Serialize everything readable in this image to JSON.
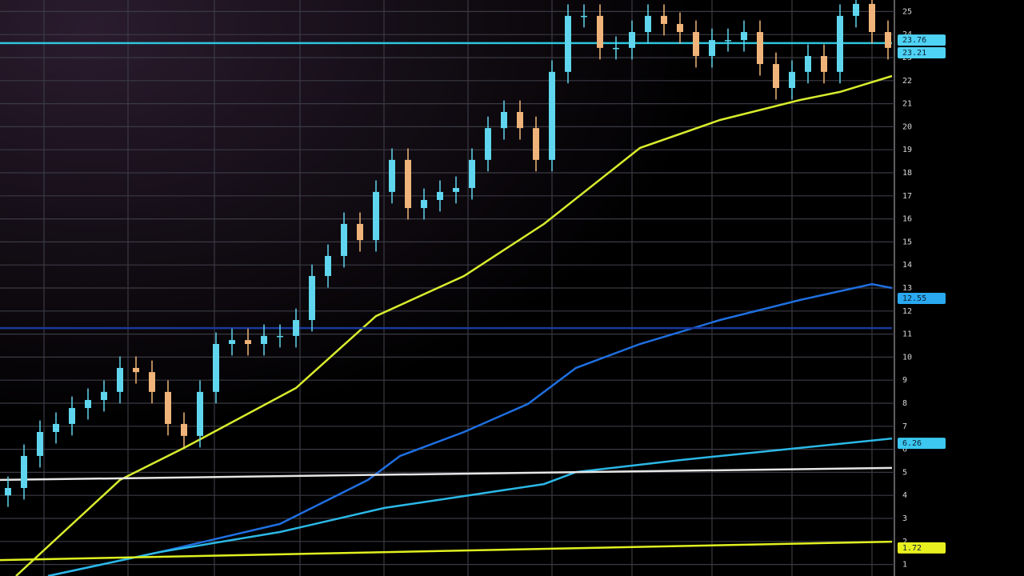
{
  "chart_data": {
    "type": "candlestick",
    "xlim": [
      -0.5,
      55.25
    ],
    "ylim": [
      0.5,
      25.5
    ],
    "xticks": [
      2.25,
      7.5,
      12.9,
      18.25,
      23.5,
      28.75,
      34,
      39,
      44,
      49,
      54
    ],
    "yticks": [
      1,
      2,
      3,
      4,
      5,
      6,
      7,
      8,
      9,
      10,
      11,
      12,
      13,
      14,
      15,
      16,
      17,
      18,
      19,
      20,
      21,
      22,
      23,
      24,
      25
    ],
    "grid": true,
    "up_color": "#5fd6ee",
    "down_color": "#f0b47a",
    "open": [
      4.0,
      4.32,
      5.71,
      6.75,
      7.1,
      7.79,
      8.14,
      8.49,
      9.53,
      9.35,
      8.49,
      7.1,
      6.58,
      8.49,
      10.57,
      10.74,
      10.57,
      10.92,
      10.92,
      11.61,
      13.52,
      14.39,
      15.78,
      15.08,
      17.17,
      18.56,
      16.47,
      16.82,
      17.17,
      17.34,
      18.56,
      19.94,
      20.64,
      19.94,
      18.56,
      22.38,
      24.81,
      24.81,
      23.42,
      23.42,
      24.11,
      24.81,
      24.46,
      24.11,
      23.07,
      23.76,
      23.76,
      24.11,
      22.72,
      21.68,
      22.38,
      23.07,
      22.38,
      24.81,
      25.33,
      24.11
    ],
    "high": [
      4.82,
      6.21,
      7.25,
      7.6,
      8.29,
      8.64,
      8.99,
      10.03,
      10.03,
      9.85,
      8.99,
      7.6,
      8.99,
      11.07,
      11.24,
      11.24,
      11.42,
      11.42,
      12.11,
      14.02,
      14.89,
      16.28,
      16.28,
      17.67,
      19.06,
      19.06,
      17.32,
      17.67,
      17.84,
      19.06,
      20.44,
      21.14,
      21.14,
      20.44,
      22.88,
      25.31,
      25.31,
      25.31,
      23.92,
      24.61,
      25.31,
      25.31,
      24.96,
      24.61,
      24.26,
      24.26,
      24.61,
      24.61,
      23.22,
      22.88,
      23.57,
      23.57,
      25.31,
      25.83,
      25.83,
      24.61
    ],
    "low": [
      3.5,
      3.82,
      5.21,
      6.25,
      6.6,
      7.29,
      7.64,
      7.99,
      8.85,
      7.99,
      6.6,
      6.08,
      6.08,
      7.99,
      10.07,
      10.07,
      10.07,
      10.42,
      10.42,
      11.11,
      13.02,
      13.89,
      14.58,
      14.58,
      16.67,
      15.97,
      15.97,
      16.32,
      16.67,
      16.84,
      18.06,
      19.44,
      19.44,
      18.06,
      18.06,
      21.88,
      24.31,
      22.92,
      22.92,
      22.92,
      23.61,
      23.96,
      23.61,
      22.57,
      22.57,
      23.26,
      23.26,
      22.22,
      21.18,
      21.18,
      21.88,
      21.88,
      21.88,
      24.31,
      23.61,
      22.92
    ],
    "close": [
      4.32,
      5.71,
      6.75,
      7.1,
      7.79,
      8.14,
      8.49,
      9.53,
      9.35,
      8.49,
      7.1,
      6.58,
      8.49,
      10.57,
      10.74,
      10.57,
      10.92,
      10.92,
      11.61,
      13.52,
      14.39,
      15.78,
      15.08,
      17.17,
      18.56,
      16.47,
      16.82,
      17.17,
      17.34,
      18.56,
      19.94,
      20.64,
      19.94,
      18.56,
      22.38,
      24.81,
      24.81,
      23.42,
      23.42,
      24.11,
      24.81,
      24.46,
      24.11,
      23.07,
      23.76,
      23.76,
      24.11,
      22.72,
      21.68,
      22.38,
      23.07,
      22.38,
      24.81,
      25.33,
      24.11,
      23.42
    ],
    "lines": [
      {
        "color": "#d8ec2e",
        "x": [
          0.5,
          7,
          11,
          18,
          23,
          28.5,
          33.5,
          39.5,
          44.5,
          49.5,
          52,
          55.25
        ],
        "values": [
          0.5,
          4.67,
          6.06,
          8.66,
          11.78,
          13.52,
          15.78,
          19.08,
          20.29,
          21.16,
          21.51,
          22.2
        ]
      },
      {
        "color": "#1f6fe0",
        "x": [
          2.5,
          9.5,
          17,
          22.5,
          24.5,
          28.5,
          32.5,
          35.5,
          39.5,
          44.5,
          49.5,
          54,
          55.25
        ],
        "values": [
          0.5,
          1.54,
          2.76,
          4.67,
          5.71,
          6.75,
          7.97,
          9.53,
          10.57,
          11.61,
          12.48,
          13.17,
          13.0
        ]
      },
      {
        "color": "#2bb8e6",
        "x": [
          2.5,
          9.5,
          17,
          23.5,
          28.5,
          33.5,
          35.5,
          42,
          49.5,
          55.25
        ],
        "values": [
          0.5,
          1.54,
          2.41,
          3.45,
          3.97,
          4.49,
          5.01,
          5.53,
          6.06,
          6.47
        ]
      },
      {
        "color": "#2ec4dc",
        "x": [
          -0.5,
          55.25
        ],
        "values": [
          23.63,
          23.63
        ]
      },
      {
        "color": "#1a3a9a",
        "x": [
          -0.5,
          55.25
        ],
        "values": [
          11.26,
          11.26
        ]
      },
      {
        "color": "#e6e6e6",
        "x": [
          -0.5,
          55.25
        ],
        "values": [
          4.67,
          5.19
        ]
      },
      {
        "color": "#e0f020",
        "x": [
          -0.5,
          55.25
        ],
        "values": [
          1.19,
          1.99
        ]
      }
    ],
    "price_tags": [
      {
        "value": 23.76,
        "color": "#4fd3f5"
      },
      {
        "value": 23.21,
        "color": "#4fd3f5"
      },
      {
        "value": 12.55,
        "color": "#2aa8f0"
      },
      {
        "value": 6.26,
        "color": "#3cc8f0"
      },
      {
        "value": 1.72,
        "color": "#e8f020"
      }
    ]
  }
}
